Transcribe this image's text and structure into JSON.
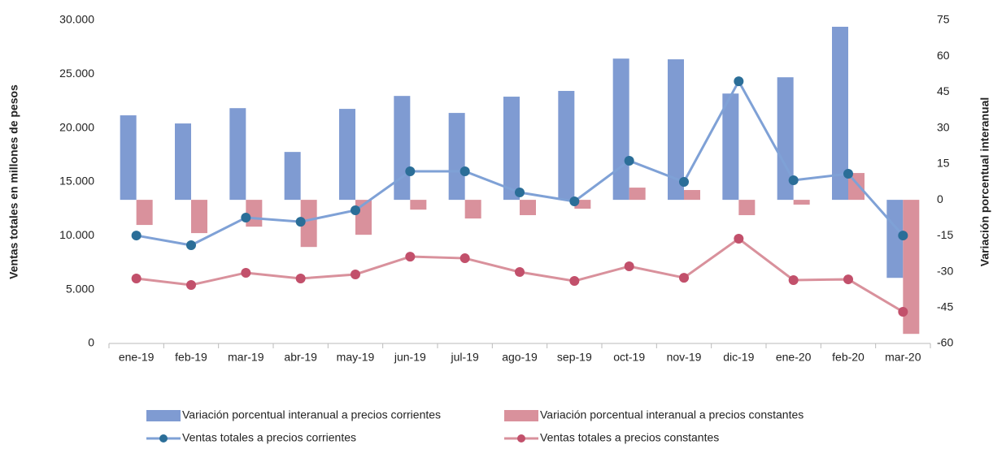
{
  "chart_data": {
    "type": "bar-line",
    "ylabel": "Ventas totales en millones de pesos",
    "y2label": "Variación porcentual interanual",
    "categories": [
      "ene-19",
      "feb-19",
      "mar-19",
      "abr-19",
      "may-19",
      "jun-19",
      "jul-19",
      "ago-19",
      "sep-19",
      "oct-19",
      "nov-19",
      "dic-19",
      "ene-20",
      "feb-20",
      "mar-20"
    ],
    "ylim": [
      0,
      30000
    ],
    "yticks": [
      {
        "value": 0,
        "label": "0"
      },
      {
        "value": 5000,
        "label": "5.000"
      },
      {
        "value": 10000,
        "label": "10.000"
      },
      {
        "value": 15000,
        "label": "15.000"
      },
      {
        "value": 20000,
        "label": "20.000"
      },
      {
        "value": 25000,
        "label": "25.000"
      },
      {
        "value": 30000,
        "label": "30.000"
      }
    ],
    "y2lim": [
      -60,
      75
    ],
    "y2ticks": [
      -60,
      -45,
      -30,
      -15,
      0,
      15,
      30,
      45,
      60,
      75
    ],
    "series": [
      {
        "name": "Variación porcentual interanual a precios corrientes",
        "type": "bar",
        "axis": "y2",
        "color": "#7f9bd2",
        "values": [
          35.3,
          31.9,
          38.3,
          20.0,
          38.0,
          43.4,
          36.3,
          43.1,
          45.5,
          59.0,
          58.7,
          44.4,
          51.2,
          72.3,
          -32.6
        ]
      },
      {
        "name": "Variación porcentual interanual a precios constantes",
        "type": "bar",
        "axis": "y2",
        "color": "#d9919c",
        "values": [
          -10.5,
          -13.9,
          -11.2,
          -19.7,
          -14.6,
          -4.1,
          -7.8,
          -6.4,
          -3.7,
          5.1,
          4.1,
          -6.4,
          -2.0,
          11.2,
          -56.0
        ]
      },
      {
        "name": "Ventas totales a precios corrientes",
        "type": "line",
        "color": "#7fa1d6",
        "marker_color": "#2b6e98",
        "values": [
          10020,
          9120,
          11680,
          11300,
          12360,
          15980,
          15980,
          14020,
          13190,
          16960,
          15000,
          24340,
          15150,
          15750,
          10020
        ]
      },
      {
        "name": "Ventas totales a precios constantes",
        "type": "line",
        "color": "#d9919c",
        "marker_color": "#c2506b",
        "values": [
          6030,
          5430,
          6560,
          6030,
          6410,
          8060,
          7910,
          6630,
          5800,
          7160,
          6100,
          9720,
          5880,
          5950,
          2940
        ]
      }
    ]
  }
}
